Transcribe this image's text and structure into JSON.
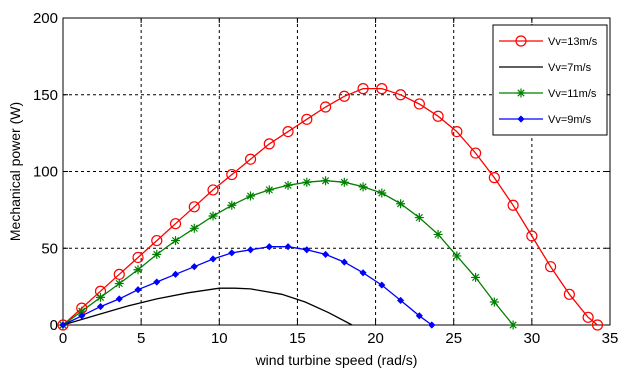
{
  "chart_data": {
    "type": "line",
    "title": "",
    "xlabel": "wind turbine speed (rad/s)",
    "ylabel": "Mechanical power (W)",
    "xlim": [
      0,
      35
    ],
    "ylim": [
      0,
      200
    ],
    "xticks": [
      0,
      5,
      10,
      15,
      20,
      25,
      30,
      35
    ],
    "yticks": [
      0,
      50,
      100,
      150,
      200
    ],
    "grid": true,
    "legend_position": "top-right",
    "series": [
      {
        "name": "Vv=13m/s",
        "color": "#ff0000",
        "marker": "circle",
        "x": [
          0,
          1.2,
          2.4,
          3.6,
          4.8,
          6.0,
          7.2,
          8.4,
          9.6,
          10.8,
          12.0,
          13.2,
          14.4,
          15.6,
          16.8,
          18.0,
          19.2,
          20.4,
          21.6,
          22.8,
          24.0,
          25.2,
          26.4,
          27.6,
          28.8,
          30.0,
          31.2,
          32.4,
          33.6,
          34.2
        ],
        "y": [
          0,
          11,
          22,
          33,
          44,
          55,
          66,
          77,
          88,
          98,
          108,
          118,
          126,
          134,
          142,
          149,
          154,
          154,
          150,
          144,
          136,
          126,
          112,
          96,
          78,
          58,
          38,
          20,
          5,
          0
        ]
      },
      {
        "name": "Vv=7m/s",
        "color": "#000000",
        "marker": "none",
        "x": [
          0,
          2,
          4,
          6,
          8,
          10,
          11,
          12,
          14,
          15.5,
          17,
          18.5
        ],
        "y": [
          0,
          6,
          12,
          17,
          21,
          24,
          24,
          23.5,
          20,
          15,
          8,
          0
        ]
      },
      {
        "name": "Vv=11m/s",
        "color": "#008000",
        "marker": "star",
        "x": [
          0,
          1.2,
          2.4,
          3.6,
          4.8,
          6.0,
          7.2,
          8.4,
          9.6,
          10.8,
          12.0,
          13.2,
          14.4,
          15.6,
          16.8,
          18.0,
          19.2,
          20.4,
          21.6,
          22.8,
          24.0,
          25.2,
          26.4,
          27.6,
          28.8
        ],
        "y": [
          0,
          9,
          18,
          27,
          36,
          46,
          55,
          63,
          71,
          78,
          84,
          88,
          91,
          93,
          94,
          93,
          90,
          86,
          79,
          70,
          59,
          45,
          31,
          15,
          0
        ]
      },
      {
        "name": "Vv=9m/s",
        "color": "#0000ff",
        "marker": "diamond",
        "x": [
          0,
          1.2,
          2.4,
          3.6,
          4.8,
          6.0,
          7.2,
          8.4,
          9.6,
          10.8,
          12.0,
          13.2,
          14.4,
          15.6,
          16.8,
          18.0,
          19.2,
          20.4,
          21.6,
          22.8,
          23.6
        ],
        "y": [
          0,
          6,
          12,
          17,
          23,
          28,
          33,
          38,
          43,
          47,
          49,
          51,
          51,
          49,
          46,
          41,
          34,
          26,
          16,
          6,
          0
        ]
      }
    ]
  }
}
